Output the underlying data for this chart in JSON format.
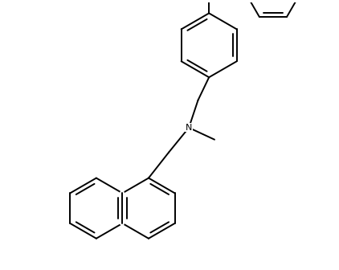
{
  "bg_color": "#ffffff",
  "line_color": "#000000",
  "line_width": 1.4,
  "figure_size": [
    4.22,
    3.36
  ],
  "dpi": 100,
  "font_size": 8
}
